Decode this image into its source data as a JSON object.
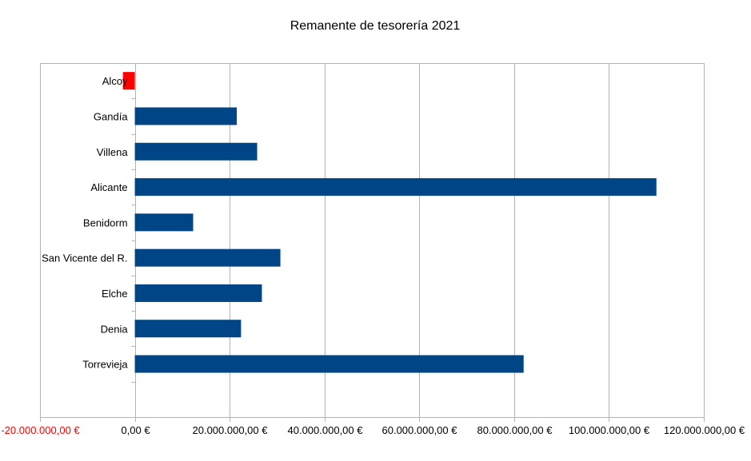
{
  "chart_data": {
    "type": "bar",
    "orientation": "horizontal",
    "title": "Remanente de tesorería 2021",
    "xlabel": "",
    "ylabel": "",
    "categories": [
      "Alcoy",
      "Gandía",
      "Villena",
      "Alicante",
      "Benidorm",
      "San Vicente del R.",
      "Elche",
      "Denia",
      "Torrevieja"
    ],
    "values": [
      -2500000,
      21500000,
      25800000,
      110000000,
      12300000,
      30700000,
      26800000,
      22400000,
      82000000
    ],
    "xlim": [
      -20000000,
      120000000
    ],
    "x_ticks": [
      -20000000,
      0,
      20000000,
      40000000,
      60000000,
      80000000,
      100000000,
      120000000
    ],
    "x_tick_labels": [
      "-20.000.000,00 €",
      "0,00 €",
      "20.000.000,00 €",
      "40.000.000,00 €",
      "60.000.000,00 €",
      "80.000.000,00 €",
      "100.000.000,00 €",
      "120.000.000,00 €"
    ],
    "grid": "vertical",
    "legend": "none",
    "colors": {
      "positive_bar": "#004586",
      "negative_bar": "#ff0000",
      "negative_tick_label": "#ff0000",
      "tick_label": "#000000",
      "gridline": "#b3b3b3"
    }
  }
}
